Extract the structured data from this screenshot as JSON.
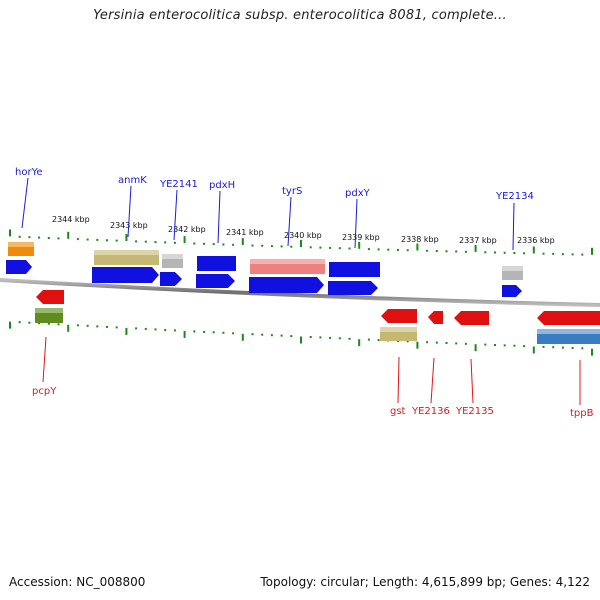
{
  "title": "Yersinia enterocolitica subsp. enterocolitica 8081, complete...",
  "footer": {
    "accession": "Accession: NC_008800",
    "summary": "Topology: circular; Length: 4,615,899 bp; Genes: 4,122"
  },
  "colors": {
    "upper_label": "#1a1ad6",
    "lower_label": "#e01818",
    "ruler_tick": "#1b8a1b",
    "backbone": "#8c8c8c"
  },
  "scale_labels": [
    "2344 kbp",
    "2343 kbp",
    "2342 kbp",
    "2341 kbp",
    "2340 kbp",
    "2339 kbp",
    "2338 kbp",
    "2337 kbp",
    "2336 kbp"
  ],
  "genes_forward": [
    {
      "label": "horYe",
      "color": "#1010e0"
    },
    {
      "label": "anmK",
      "color": "#1010e0"
    },
    {
      "label": "YE2141",
      "color": "#1010e0"
    },
    {
      "label": "pdxH",
      "color": "#1010e0"
    },
    {
      "label": "tyrS",
      "color": "#1010e0"
    },
    {
      "label": "pdxY",
      "color": "#1010e0"
    },
    {
      "label": "YE2134",
      "color": "#1010e0"
    }
  ],
  "genes_reverse": [
    {
      "label": "pcpY",
      "color": "#e01010"
    },
    {
      "label": "gst",
      "color": "#e01010"
    },
    {
      "label": "YE2136",
      "color": "#e01010"
    },
    {
      "label": "YE2135",
      "color": "#e01010"
    },
    {
      "label": "tppB",
      "color": "#e01010"
    }
  ]
}
